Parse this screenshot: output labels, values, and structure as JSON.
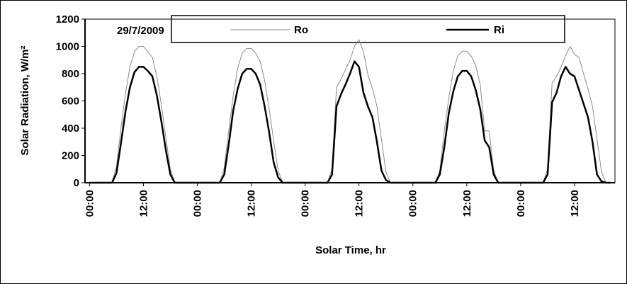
{
  "chart_data": {
    "type": "line",
    "annotation": "29/7/2009",
    "xlabel": "Solar Time, hr",
    "ylabel": "Solar Radiation, W/m²",
    "x": [
      0,
      5,
      6,
      7,
      8,
      9,
      10,
      11,
      12,
      13,
      14,
      15,
      16,
      17,
      18,
      19,
      29,
      30,
      31,
      32,
      33,
      34,
      35,
      36,
      37,
      38,
      39,
      40,
      41,
      42,
      43,
      53,
      54,
      55,
      56,
      57,
      58,
      59,
      60,
      61,
      62,
      63,
      64,
      65,
      66,
      67,
      77,
      78,
      79,
      80,
      81,
      82,
      83,
      84,
      85,
      86,
      87,
      88,
      89,
      90,
      91,
      101,
      102,
      103,
      104,
      105,
      106,
      107,
      108,
      109,
      110,
      111,
      112,
      113,
      114,
      115,
      116
    ],
    "series": [
      {
        "name": "Ro",
        "color": "#8c8c8c",
        "width": 1,
        "values": [
          0,
          0,
          120,
          400,
          650,
          850,
          960,
          1000,
          1000,
          960,
          920,
          780,
          570,
          330,
          100,
          0,
          0,
          110,
          380,
          640,
          840,
          950,
          985,
          985,
          950,
          890,
          750,
          540,
          310,
          90,
          0,
          0,
          100,
          700,
          760,
          830,
          900,
          1000,
          1050,
          960,
          790,
          690,
          560,
          320,
          80,
          0,
          0,
          90,
          380,
          620,
          820,
          930,
          965,
          965,
          930,
          860,
          720,
          380,
          380,
          90,
          0,
          0,
          100,
          730,
          780,
          850,
          930,
          1000,
          940,
          920,
          800,
          690,
          560,
          320,
          80,
          0,
          0
        ]
      },
      {
        "name": "Ri",
        "color": "#000000",
        "width": 2.5,
        "values": [
          0,
          0,
          70,
          290,
          520,
          700,
          810,
          850,
          850,
          820,
          780,
          640,
          450,
          240,
          60,
          0,
          0,
          60,
          280,
          530,
          690,
          800,
          835,
          835,
          800,
          720,
          560,
          370,
          150,
          40,
          0,
          0,
          60,
          560,
          650,
          720,
          800,
          890,
          850,
          660,
          560,
          480,
          300,
          90,
          20,
          0,
          0,
          60,
          260,
          510,
          670,
          780,
          820,
          820,
          780,
          680,
          540,
          310,
          260,
          60,
          0,
          0,
          60,
          590,
          660,
          780,
          850,
          800,
          780,
          680,
          580,
          480,
          300,
          60,
          10,
          0,
          0
        ]
      }
    ],
    "xlim": [
      -1,
      117
    ],
    "xticks": [
      {
        "value": 0,
        "label": "00:00"
      },
      {
        "value": 12,
        "label": "12:00"
      },
      {
        "value": 24,
        "label": "00:00"
      },
      {
        "value": 36,
        "label": "12:00"
      },
      {
        "value": 48,
        "label": "00:00"
      },
      {
        "value": 60,
        "label": "12:00"
      },
      {
        "value": 72,
        "label": "00:00"
      },
      {
        "value": 84,
        "label": "12:00"
      },
      {
        "value": 96,
        "label": "00:00"
      },
      {
        "value": 108,
        "label": "12:00"
      }
    ],
    "ylim": [
      0,
      1200
    ],
    "yticks": [
      0,
      200,
      400,
      600,
      800,
      1000,
      1200
    ]
  }
}
